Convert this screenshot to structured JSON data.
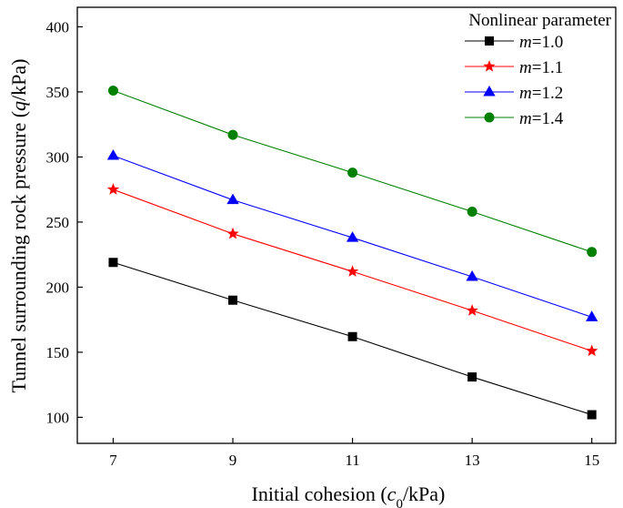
{
  "chart_data": {
    "type": "line",
    "title": "",
    "xlabel": "Initial cohesion (c0/kPa)",
    "ylabel": "Tunnel surrounding rock pressure (q/kPa)",
    "x": [
      7,
      9,
      11,
      13,
      15
    ],
    "xlim": [
      6.4,
      15.4
    ],
    "ylim": [
      80,
      415
    ],
    "xticks": [
      7,
      9,
      11,
      13,
      15
    ],
    "yticks": [
      100,
      150,
      200,
      250,
      300,
      350,
      400
    ],
    "grid": false,
    "legend": {
      "title": "Nonlinear parameter",
      "placement": "top-right",
      "prefix": "m",
      "labels": [
        "=1.0",
        "=1.1",
        "=1.2",
        "=1.4"
      ]
    },
    "series": [
      {
        "name": "m=1.0",
        "values": [
          219,
          190,
          162,
          131,
          102
        ],
        "color": "#000000",
        "marker": "square"
      },
      {
        "name": "m=1.1",
        "values": [
          275,
          241,
          212,
          182,
          151
        ],
        "color": "#ff0000",
        "marker": "star"
      },
      {
        "name": "m=1.2",
        "values": [
          301,
          267,
          238,
          208,
          177
        ],
        "color": "#0000ff",
        "marker": "triangle"
      },
      {
        "name": "m=1.4",
        "values": [
          351,
          317,
          288,
          258,
          227
        ],
        "color": "#008000",
        "marker": "circle"
      }
    ]
  }
}
